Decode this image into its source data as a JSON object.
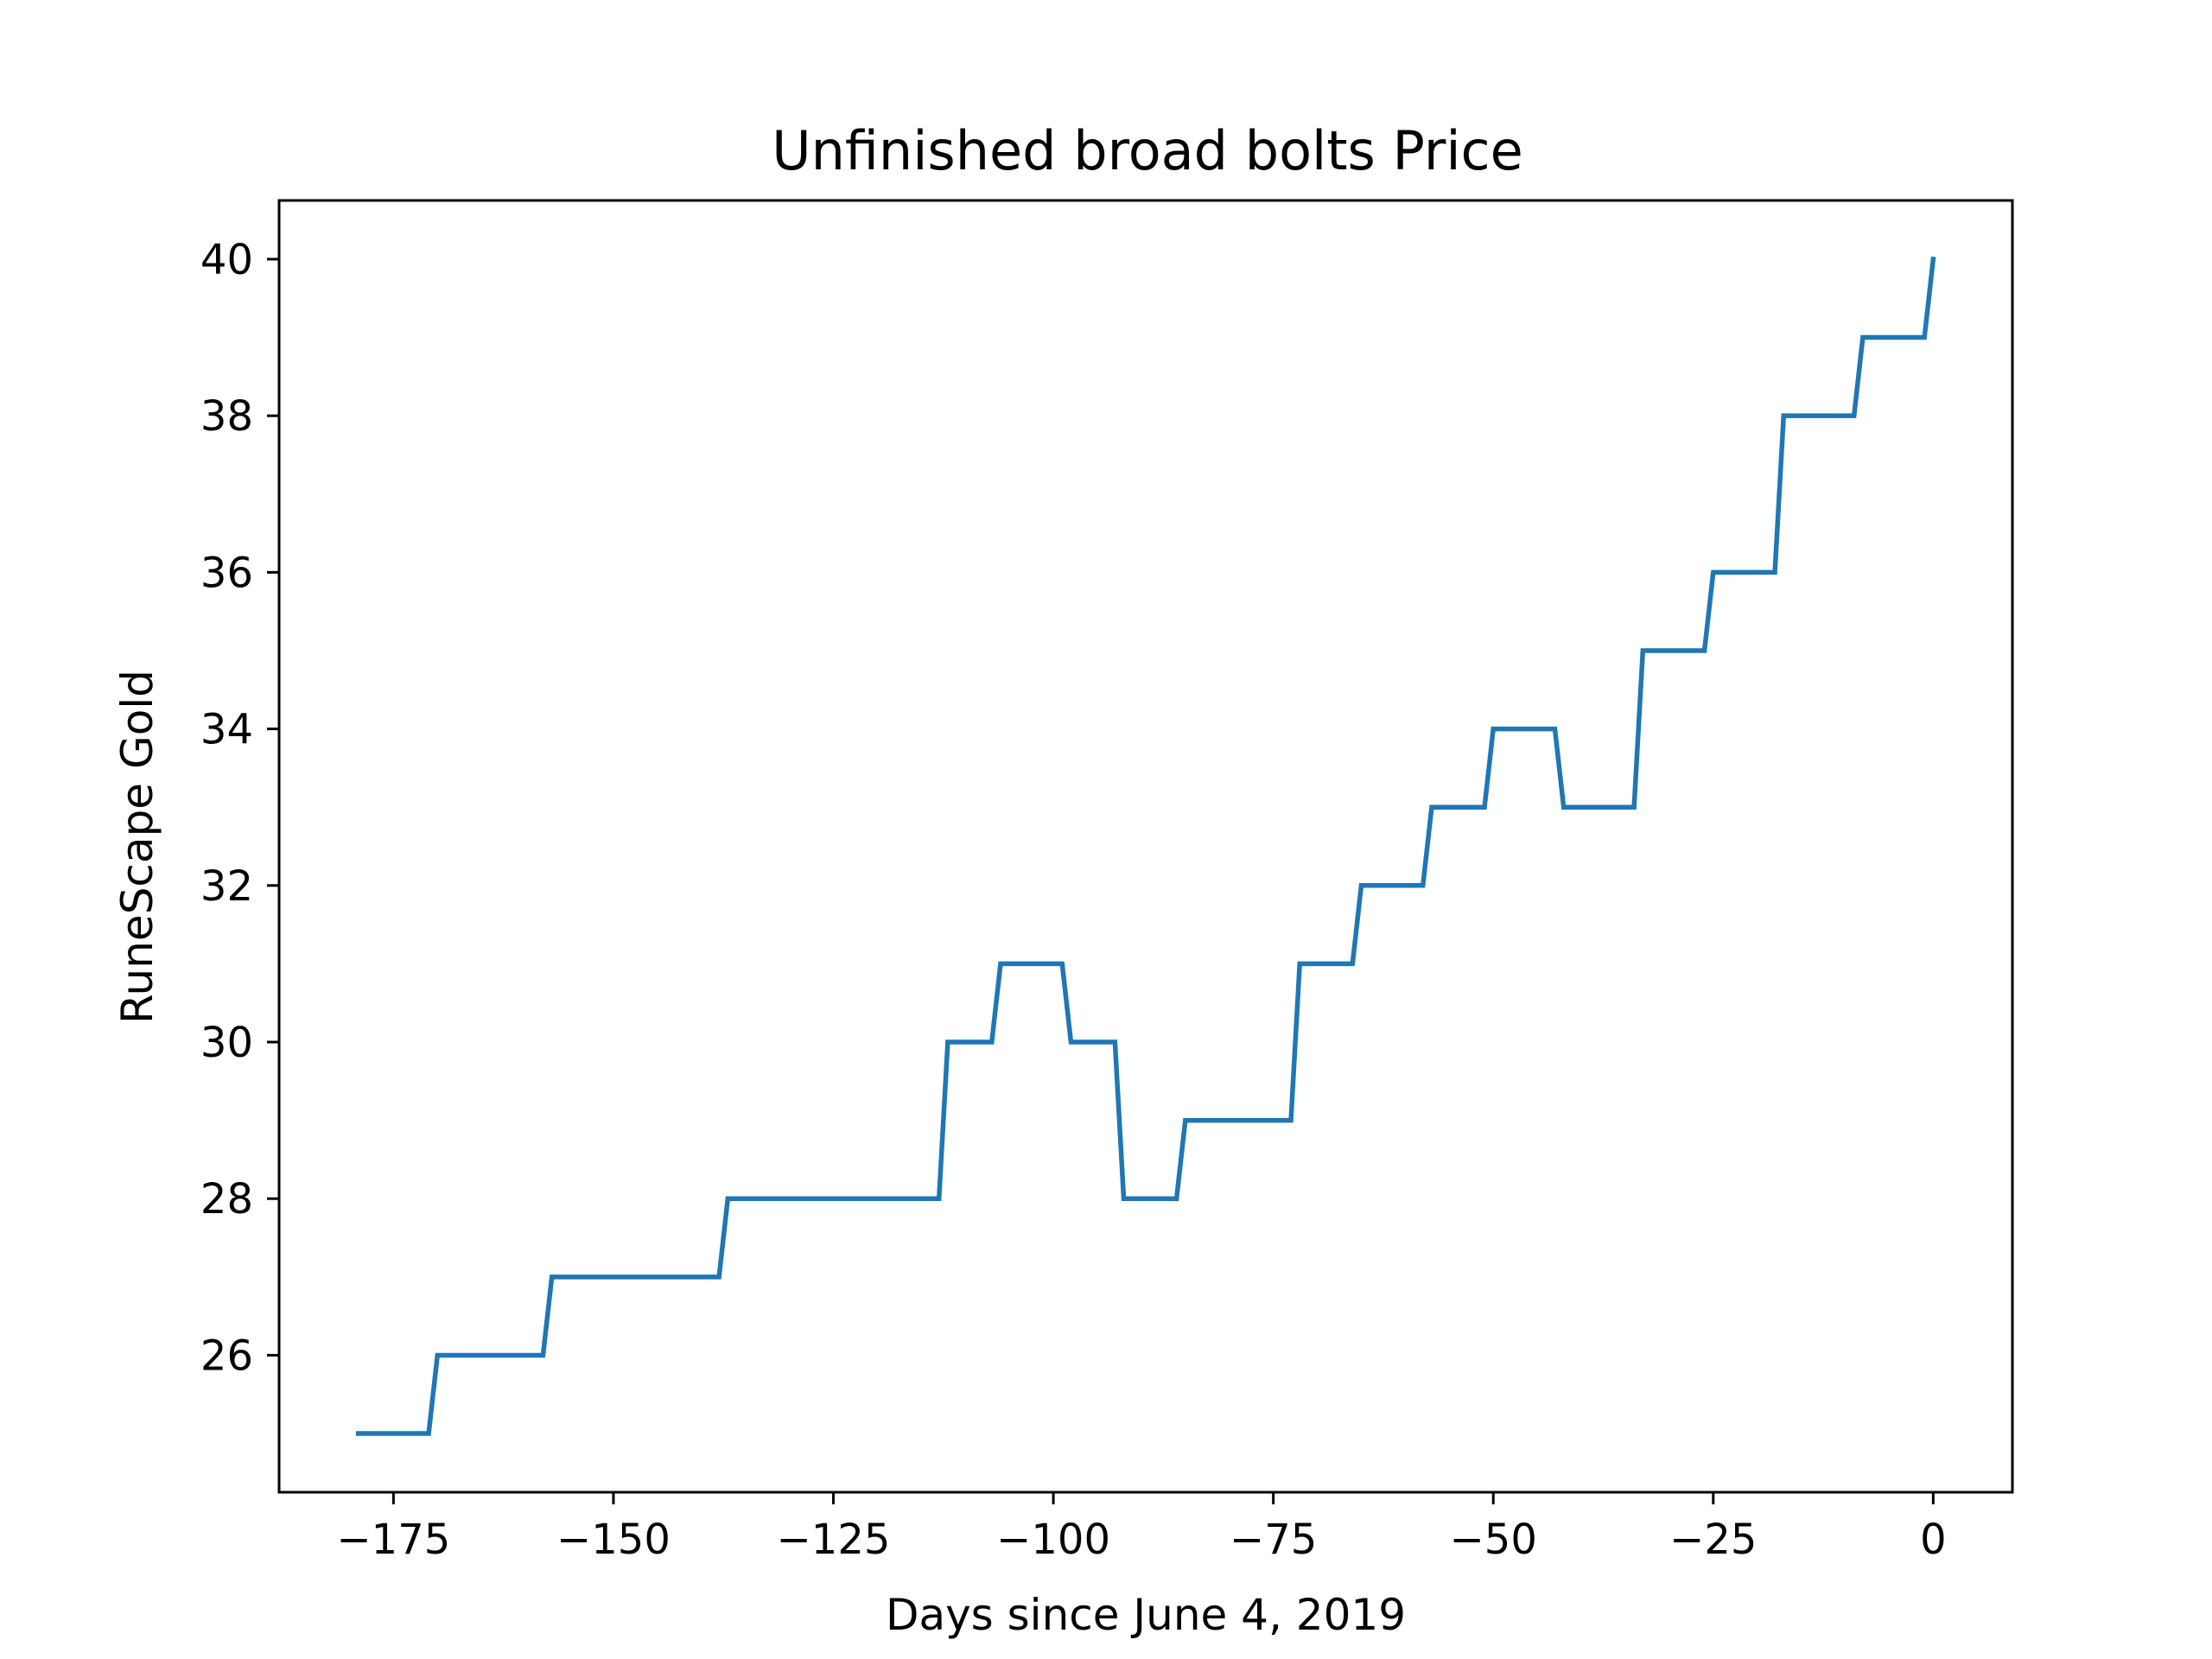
{
  "chart_data": {
    "type": "line",
    "title": "Unfinished broad bolts Price",
    "xlabel": "Days since June 4, 2019",
    "ylabel": "RuneScape Gold",
    "xlim": [
      -188,
      9
    ],
    "ylim": [
      24.25,
      40.75
    ],
    "xticks": [
      -175,
      -150,
      -125,
      -100,
      -75,
      -50,
      -25,
      0
    ],
    "xtick_labels": [
      "−175",
      "−150",
      "−125",
      "−100",
      "−75",
      "−50",
      "−25",
      "0"
    ],
    "yticks": [
      26,
      28,
      30,
      32,
      34,
      36,
      38,
      40
    ],
    "ytick_labels": [
      "26",
      "28",
      "30",
      "32",
      "34",
      "36",
      "38",
      "40"
    ],
    "grid": false,
    "legend": "none",
    "series": [
      {
        "color": "#1f77b4",
        "x": [
          -179,
          -171,
          -170,
          -158,
          -157,
          -138,
          -137,
          -113,
          -112,
          -107,
          -106,
          -99,
          -98,
          -93,
          -92,
          -86,
          -85,
          -73,
          -72,
          -66,
          -65,
          -58,
          -57,
          -51,
          -50,
          -43,
          -42,
          -34,
          -33,
          -26,
          -25,
          -18,
          -17,
          -9,
          -8,
          -1,
          0
        ],
        "y": [
          25,
          25,
          26,
          26,
          27,
          27,
          28,
          28,
          30,
          30,
          31,
          31,
          30,
          30,
          28,
          28,
          29,
          29,
          31,
          31,
          32,
          32,
          33,
          33,
          34,
          34,
          33,
          33,
          35,
          35,
          36,
          36,
          38,
          38,
          39,
          39,
          40
        ]
      }
    ]
  }
}
